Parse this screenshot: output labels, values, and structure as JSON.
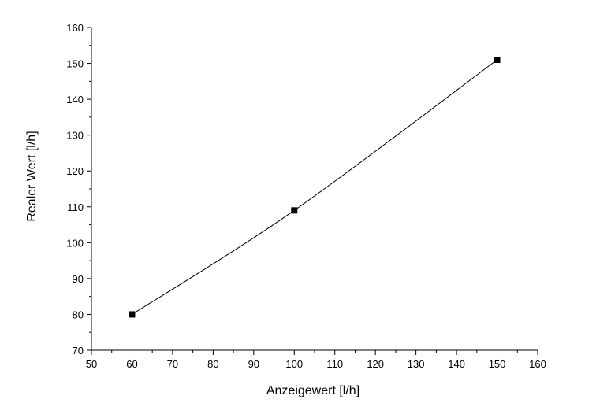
{
  "chart_data": {
    "type": "line",
    "xlabel": "Anzeigewert [l/h]",
    "ylabel": "Realer Wert [l/h]",
    "xlim": [
      50,
      160
    ],
    "ylim": [
      70,
      160
    ],
    "x_ticks": [
      50,
      60,
      70,
      80,
      90,
      100,
      110,
      120,
      130,
      140,
      150,
      160
    ],
    "y_ticks": [
      70,
      80,
      90,
      100,
      110,
      120,
      130,
      140,
      150,
      160
    ],
    "grid": false,
    "legend": "none",
    "series": [
      {
        "x": [
          60,
          100,
          150
        ],
        "y": [
          80,
          109,
          151
        ],
        "marker": "square",
        "color": "#000000"
      }
    ]
  }
}
